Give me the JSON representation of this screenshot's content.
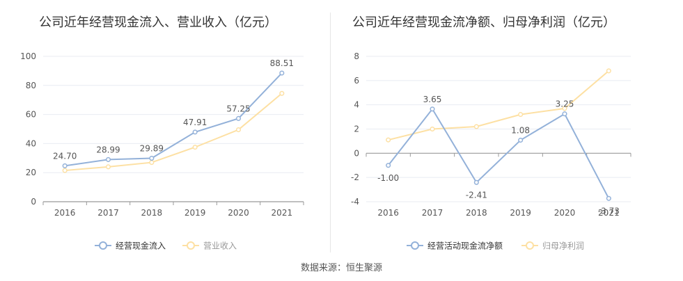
{
  "colors": {
    "primary": "#93b1d9",
    "secondary": "#fde0a3",
    "grid": "#e8ebf2",
    "axis": "#999999",
    "zero_axis": "#999999",
    "text": "#555555",
    "title": "#333333"
  },
  "source": "数据来源：恒生聚源",
  "chart_data": [
    {
      "type": "line",
      "title": "公司近年经营现金流入、营业收入（亿元）",
      "categories": [
        "2016",
        "2017",
        "2018",
        "2019",
        "2020",
        "2021"
      ],
      "ylim": [
        0,
        100
      ],
      "yticks": [
        0,
        20,
        40,
        60,
        80,
        100
      ],
      "ytick_labels": [
        "0",
        "20",
        "40",
        "60",
        "80",
        "100"
      ],
      "legend_position": "bottom",
      "series": [
        {
          "name": "经营现金流入",
          "values": [
            24.7,
            28.99,
            29.89,
            47.91,
            57.25,
            88.51
          ],
          "labels": [
            "24.70",
            "28.99",
            "29.89",
            "47.91",
            "57.25",
            "88.51"
          ]
        },
        {
          "name": "营业收入",
          "values": [
            21.5,
            24.0,
            27.0,
            37.5,
            49.5,
            74.5
          ]
        }
      ]
    },
    {
      "type": "line",
      "title": "公司近年经营现金流净额、归母净利润（亿元）",
      "categories": [
        "2016",
        "2017",
        "2018",
        "2019",
        "2020",
        "2021"
      ],
      "ylim": [
        -4,
        8
      ],
      "yticks": [
        -4,
        -2,
        0,
        2,
        4,
        6,
        8
      ],
      "ytick_labels": [
        "-4",
        "-2",
        "0",
        "2",
        "4",
        "6",
        "8"
      ],
      "legend_position": "bottom",
      "series": [
        {
          "name": "经营活动现金流净额",
          "values": [
            -1.0,
            3.65,
            -2.41,
            1.08,
            3.25,
            -3.73
          ],
          "labels": [
            "-1.00",
            "3.65",
            "-2.41",
            "1.08",
            "3.25",
            "-3.73"
          ]
        },
        {
          "name": "归母净利润",
          "values": [
            1.1,
            2.0,
            2.2,
            3.2,
            3.7,
            6.8
          ]
        }
      ]
    }
  ]
}
